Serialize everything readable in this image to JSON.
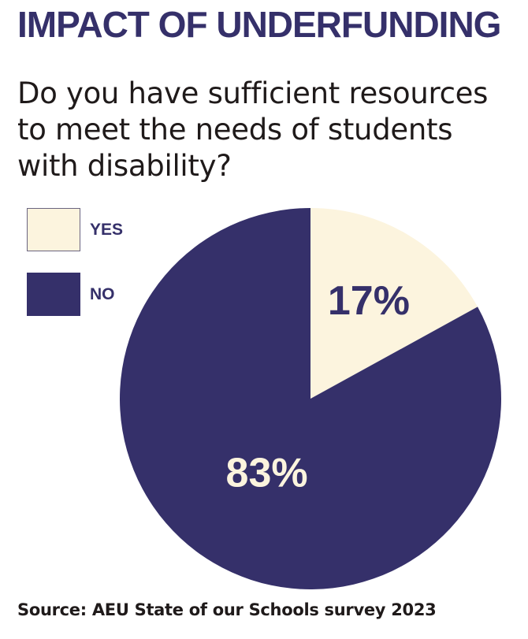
{
  "title": "IMPACT OF UNDERFUNDING",
  "question": "Do you have sufficient resources to meet the needs of students with disability?",
  "source": "Source: AEU State of our Schools survey 2023",
  "colors": {
    "yes": "#fcf4de",
    "no": "#35306a",
    "title": "#35306a"
  },
  "chart_data": {
    "type": "pie",
    "title": "Do you have sufficient resources to meet the needs of students with disability?",
    "legend_position": "top-left",
    "slices": [
      {
        "name": "YES",
        "value": 17,
        "label": "17%",
        "color": "#fcf4de",
        "label_color": "#35306a"
      },
      {
        "name": "NO",
        "value": 83,
        "label": "83%",
        "color": "#35306a",
        "label_color": "#fcf4de"
      }
    ]
  }
}
